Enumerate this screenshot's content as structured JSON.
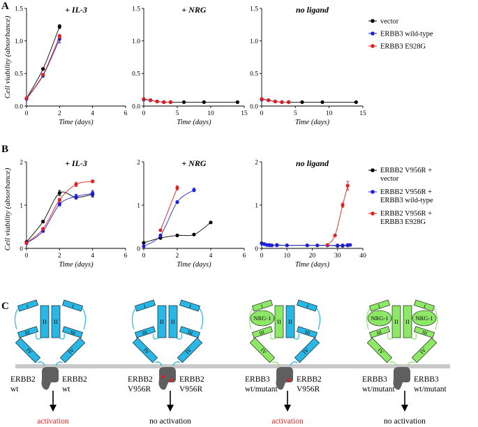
{
  "panel_letters": [
    "A",
    "B",
    "C"
  ],
  "shared_labels": {
    "ylabel": "Cell viability (absorbance)",
    "xlabel": "Time (days)"
  },
  "chart_data": [
    {
      "id": "A1",
      "type": "line",
      "title": "+ IL-3",
      "xlabel": "Time (days)",
      "ylabel": "Cell viability (absorbance)",
      "xlim": [
        0,
        6
      ],
      "ylim": [
        0,
        1.5
      ],
      "xticks": [
        "0",
        "2",
        "4",
        "6"
      ],
      "yticks": [
        "0.0",
        "0.5",
        "1.0",
        "1.5"
      ],
      "series": [
        {
          "color": "#000000",
          "x": [
            0,
            1,
            2
          ],
          "y": [
            0.12,
            0.57,
            1.22
          ],
          "err": [
            0.01,
            0.02,
            0.03
          ]
        },
        {
          "color": "#1f1fe0",
          "x": [
            0,
            1,
            2
          ],
          "y": [
            0.11,
            0.47,
            1.03
          ],
          "err": [
            0.01,
            0.03,
            0.06
          ]
        },
        {
          "color": "#e01f1f",
          "x": [
            0,
            1,
            2
          ],
          "y": [
            0.12,
            0.48,
            1.07
          ],
          "err": [
            0.01,
            0.02,
            0.03
          ]
        }
      ]
    },
    {
      "id": "A2",
      "type": "line",
      "title": "+ NRG",
      "xlabel": "Time (days)",
      "ylabel": "",
      "xlim": [
        0,
        15
      ],
      "ylim": [
        0,
        1.5
      ],
      "xticks": [
        "0",
        "5",
        "10",
        "15"
      ],
      "yticks": [
        "0.0",
        "0.5",
        "1.0",
        "1.5"
      ],
      "series": [
        {
          "color": "#000000",
          "x": [
            0,
            1,
            2,
            3,
            4,
            6,
            9,
            14
          ],
          "y": [
            0.1,
            0.09,
            0.07,
            0.06,
            0.06,
            0.06,
            0.06,
            0.06
          ]
        },
        {
          "color": "#1f1fe0",
          "x": [
            0,
            1,
            2,
            3,
            4
          ],
          "y": [
            0.1,
            0.09,
            0.07,
            0.06,
            0.06
          ]
        },
        {
          "color": "#e01f1f",
          "x": [
            0,
            1,
            2,
            3,
            4
          ],
          "y": [
            0.11,
            0.09,
            0.07,
            0.06,
            0.06
          ]
        }
      ]
    },
    {
      "id": "A3",
      "type": "line",
      "title": "no ligand",
      "xlabel": "Time (days)",
      "ylabel": "",
      "xlim": [
        0,
        15
      ],
      "ylim": [
        0,
        1.5
      ],
      "xticks": [
        "0",
        "5",
        "10",
        "15"
      ],
      "yticks": [
        "0.0",
        "0.5",
        "1.0",
        "1.5"
      ],
      "series": [
        {
          "color": "#000000",
          "x": [
            0,
            1,
            2,
            3,
            4,
            6,
            9,
            14
          ],
          "y": [
            0.1,
            0.09,
            0.07,
            0.06,
            0.06,
            0.06,
            0.06,
            0.06
          ]
        },
        {
          "color": "#1f1fe0",
          "x": [
            0,
            1,
            2,
            3,
            4
          ],
          "y": [
            0.1,
            0.09,
            0.07,
            0.06,
            0.06
          ]
        },
        {
          "color": "#e01f1f",
          "x": [
            0,
            1,
            2,
            3,
            4
          ],
          "y": [
            0.11,
            0.09,
            0.07,
            0.06,
            0.06
          ]
        }
      ]
    },
    {
      "id": "B1",
      "type": "line",
      "title": "+ IL-3",
      "xlabel": "Time (days)",
      "ylabel": "Cell viability (absorbance)",
      "xlim": [
        0,
        6
      ],
      "ylim": [
        0,
        2
      ],
      "xticks": [
        "0",
        "2",
        "4",
        "6"
      ],
      "yticks": [
        "0",
        "1",
        "2"
      ],
      "series": [
        {
          "color": "#000000",
          "x": [
            0,
            1,
            2,
            3,
            4
          ],
          "y": [
            0.15,
            0.62,
            1.28,
            1.18,
            1.25
          ],
          "err": [
            0.02,
            0.03,
            0.06,
            0.04,
            0.06
          ]
        },
        {
          "color": "#1f1fe0",
          "x": [
            0,
            1,
            2,
            3,
            4
          ],
          "y": [
            0.12,
            0.4,
            1.02,
            1.2,
            1.27
          ],
          "err": [
            0.02,
            0.03,
            0.04,
            0.05,
            0.07
          ]
        },
        {
          "color": "#e01f1f",
          "x": [
            0,
            1,
            2,
            3,
            4
          ],
          "y": [
            0.13,
            0.45,
            1.12,
            1.48,
            1.55
          ],
          "err": [
            0.02,
            0.03,
            0.04,
            0.05,
            0.03
          ]
        }
      ]
    },
    {
      "id": "B2",
      "type": "line",
      "title": "+ NRG",
      "xlabel": "Time (days)",
      "ylabel": "",
      "xlim": [
        0,
        6
      ],
      "ylim": [
        0,
        2
      ],
      "xticks": [
        "0",
        "2",
        "4",
        "6"
      ],
      "yticks": [
        "0",
        "1",
        "2"
      ],
      "series": [
        {
          "color": "#000000",
          "x": [
            0,
            1,
            2,
            3,
            4
          ],
          "y": [
            0.13,
            0.24,
            0.3,
            0.32,
            0.6
          ]
        },
        {
          "color": "#1f1fe0",
          "x": [
            0,
            1,
            2,
            3
          ],
          "y": [
            0.05,
            0.3,
            1.07,
            1.35
          ],
          "err": [
            0.01,
            0.02,
            0.03,
            0.04
          ]
        },
        {
          "color": "#e01f1f",
          "x": [
            1,
            2
          ],
          "y": [
            0.42,
            1.4
          ],
          "err": [
            0.02,
            0.05
          ]
        }
      ]
    },
    {
      "id": "B3",
      "type": "line",
      "title": "no ligand",
      "xlabel": "Time (days)",
      "ylabel": "",
      "xlim": [
        0,
        40
      ],
      "ylim": [
        0,
        2
      ],
      "xticks": [
        "0",
        "10",
        "20",
        "30",
        "40"
      ],
      "yticks": [
        "0",
        "1",
        "2"
      ],
      "series": [
        {
          "color": "#000000",
          "x": [
            0,
            1,
            2,
            3,
            4,
            6,
            10,
            18,
            22,
            26,
            30,
            32,
            34
          ],
          "y": [
            0.12,
            0.1,
            0.08,
            0.08,
            0.07,
            0.08,
            0.07,
            0.07,
            0.07,
            0.07,
            0.06,
            0.06,
            0.07
          ]
        },
        {
          "color": "#1f1fe0",
          "x": [
            0,
            1,
            2,
            3,
            4,
            6,
            10,
            18,
            22,
            26,
            30,
            32,
            34,
            35
          ],
          "y": [
            0.11,
            0.1,
            0.08,
            0.07,
            0.07,
            0.07,
            0.07,
            0.07,
            0.07,
            0.07,
            0.07,
            0.07,
            0.08,
            0.08
          ]
        },
        {
          "color": "#e01f1f",
          "x": [
            26,
            29,
            32,
            34
          ],
          "y": [
            0.08,
            0.3,
            1.0,
            1.45
          ],
          "err": [
            0.01,
            0.02,
            0.05,
            0.1
          ]
        }
      ]
    }
  ],
  "legend_A": [
    {
      "label": "vector",
      "color": "#000000"
    },
    {
      "label": "ERBB3 wild-type",
      "color": "#1f1fe0"
    },
    {
      "label": "ERBB3 E928G",
      "color": "#e01f1f"
    }
  ],
  "legend_B": [
    {
      "lines": [
        "ERBB2 V956R +",
        "vector"
      ],
      "color": "#000000"
    },
    {
      "lines": [
        "ERBB2 V956R +",
        "ERBB3 wild-type"
      ],
      "color": "#1f1fe0"
    },
    {
      "lines": [
        "ERBB2 V956R +",
        "ERBB3 E928G"
      ],
      "color": "#e01f1f"
    }
  ],
  "diagram": {
    "domain_II": "II",
    "domain_III": "III",
    "domain_IV": "IV",
    "domain_I": "I",
    "ligand": "NRG-1",
    "colors": {
      "erbb2": "#29b8e6",
      "erbb3": "#8de866",
      "kinase": "#5f5f5f",
      "membrane": "#c8c8c8",
      "activation": "#e01f1f",
      "mutation": "#e01f1f"
    },
    "dimers": [
      {
        "left": [
          "ERBB2",
          "wt"
        ],
        "right": [
          "ERBB2",
          "wt"
        ],
        "outcome": "activation",
        "left_type": "erbb2",
        "right_type": "erbb2"
      },
      {
        "left": [
          "ERBB2",
          "V956R"
        ],
        "right": [
          "ERBB2",
          "V956R"
        ],
        "outcome": "no activation",
        "left_type": "erbb2",
        "right_type": "erbb2"
      },
      {
        "left": [
          "ERBB3",
          "wt/mutant"
        ],
        "right": [
          "ERBB2",
          "V956R"
        ],
        "outcome": "activation",
        "left_type": "erbb3",
        "right_type": "erbb2"
      },
      {
        "left": [
          "ERBB3",
          "wt/mutant"
        ],
        "right": [
          "ERBB3",
          "wt/mutant"
        ],
        "outcome": "no activation",
        "left_type": "erbb3",
        "right_type": "erbb3"
      }
    ]
  }
}
